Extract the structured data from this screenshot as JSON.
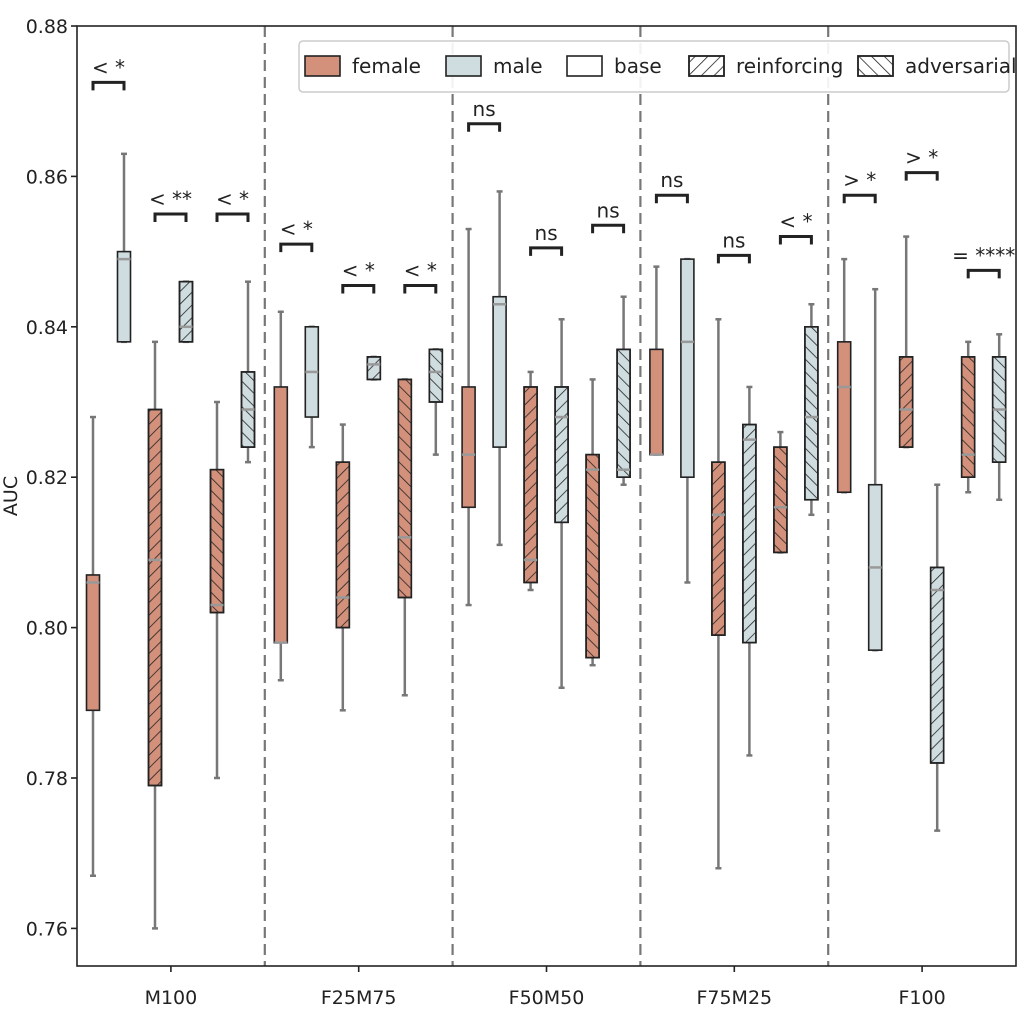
{
  "chart_data": {
    "type": "box",
    "ylabel": "AUC",
    "ylim": [
      0.755,
      0.88
    ],
    "yticks": [
      0.76,
      0.78,
      0.8,
      0.82,
      0.84,
      0.86,
      0.88
    ],
    "ytick_labels": [
      "0.76",
      "0.78",
      "0.80",
      "0.82",
      "0.84",
      "0.86",
      "0.88"
    ],
    "groups": [
      "M100",
      "F25M75",
      "F50M50",
      "F75M25",
      "F100"
    ],
    "legend_position": "top-right",
    "legend": [
      {
        "label": "female",
        "kind": "color",
        "color": "#d3907b"
      },
      {
        "label": "male",
        "kind": "color",
        "color": "#cfdde0"
      },
      {
        "label": "base",
        "kind": "pattern",
        "pattern": "none"
      },
      {
        "label": "reinforcing",
        "kind": "pattern",
        "pattern": "forward"
      },
      {
        "label": "adversarial",
        "kind": "pattern",
        "pattern": "back"
      }
    ],
    "colors": {
      "female": "#d3907b",
      "male": "#cfdde0"
    },
    "boxes": [
      {
        "group": "M100",
        "sex": "female",
        "condition": "base",
        "whislo": 0.767,
        "q1": 0.789,
        "med": 0.806,
        "q3": 0.807,
        "whishi": 0.828
      },
      {
        "group": "M100",
        "sex": "male",
        "condition": "base",
        "whislo": 0.838,
        "q1": 0.838,
        "med": 0.849,
        "q3": 0.85,
        "whishi": 0.863
      },
      {
        "group": "M100",
        "sex": "female",
        "condition": "reinforcing",
        "whislo": 0.76,
        "q1": 0.779,
        "med": 0.809,
        "q3": 0.829,
        "whishi": 0.838
      },
      {
        "group": "M100",
        "sex": "male",
        "condition": "reinforcing",
        "whislo": 0.838,
        "q1": 0.838,
        "med": 0.84,
        "q3": 0.846,
        "whishi": 0.846
      },
      {
        "group": "M100",
        "sex": "female",
        "condition": "adversarial",
        "whislo": 0.78,
        "q1": 0.802,
        "med": 0.803,
        "q3": 0.821,
        "whishi": 0.83
      },
      {
        "group": "M100",
        "sex": "male",
        "condition": "adversarial",
        "whislo": 0.822,
        "q1": 0.824,
        "med": 0.829,
        "q3": 0.834,
        "whishi": 0.846
      },
      {
        "group": "F25M75",
        "sex": "female",
        "condition": "base",
        "whislo": 0.793,
        "q1": 0.798,
        "med": 0.798,
        "q3": 0.832,
        "whishi": 0.842
      },
      {
        "group": "F25M75",
        "sex": "male",
        "condition": "base",
        "whislo": 0.824,
        "q1": 0.828,
        "med": 0.834,
        "q3": 0.84,
        "whishi": 0.84
      },
      {
        "group": "F25M75",
        "sex": "female",
        "condition": "reinforcing",
        "whislo": 0.789,
        "q1": 0.8,
        "med": 0.804,
        "q3": 0.822,
        "whishi": 0.827
      },
      {
        "group": "F25M75",
        "sex": "male",
        "condition": "reinforcing",
        "whislo": 0.833,
        "q1": 0.833,
        "med": 0.835,
        "q3": 0.836,
        "whishi": 0.836
      },
      {
        "group": "F25M75",
        "sex": "female",
        "condition": "adversarial",
        "whislo": 0.791,
        "q1": 0.804,
        "med": 0.812,
        "q3": 0.833,
        "whishi": 0.833
      },
      {
        "group": "F25M75",
        "sex": "male",
        "condition": "adversarial",
        "whislo": 0.823,
        "q1": 0.83,
        "med": 0.834,
        "q3": 0.837,
        "whishi": 0.837
      },
      {
        "group": "F50M50",
        "sex": "female",
        "condition": "base",
        "whislo": 0.803,
        "q1": 0.816,
        "med": 0.823,
        "q3": 0.832,
        "whishi": 0.853
      },
      {
        "group": "F50M50",
        "sex": "male",
        "condition": "base",
        "whislo": 0.811,
        "q1": 0.824,
        "med": 0.843,
        "q3": 0.844,
        "whishi": 0.858
      },
      {
        "group": "F50M50",
        "sex": "female",
        "condition": "reinforcing",
        "whislo": 0.805,
        "q1": 0.806,
        "med": 0.809,
        "q3": 0.832,
        "whishi": 0.834
      },
      {
        "group": "F50M50",
        "sex": "male",
        "condition": "reinforcing",
        "whislo": 0.792,
        "q1": 0.814,
        "med": 0.828,
        "q3": 0.832,
        "whishi": 0.841
      },
      {
        "group": "F50M50",
        "sex": "female",
        "condition": "adversarial",
        "whislo": 0.795,
        "q1": 0.796,
        "med": 0.821,
        "q3": 0.823,
        "whishi": 0.833
      },
      {
        "group": "F50M50",
        "sex": "male",
        "condition": "adversarial",
        "whislo": 0.819,
        "q1": 0.82,
        "med": 0.821,
        "q3": 0.837,
        "whishi": 0.844
      },
      {
        "group": "F75M25",
        "sex": "female",
        "condition": "base",
        "whislo": 0.823,
        "q1": 0.823,
        "med": 0.823,
        "q3": 0.837,
        "whishi": 0.848
      },
      {
        "group": "F75M25",
        "sex": "male",
        "condition": "base",
        "whislo": 0.806,
        "q1": 0.82,
        "med": 0.838,
        "q3": 0.849,
        "whishi": 0.849
      },
      {
        "group": "F75M25",
        "sex": "female",
        "condition": "reinforcing",
        "whislo": 0.768,
        "q1": 0.799,
        "med": 0.815,
        "q3": 0.822,
        "whishi": 0.841
      },
      {
        "group": "F75M25",
        "sex": "male",
        "condition": "reinforcing",
        "whislo": 0.783,
        "q1": 0.798,
        "med": 0.825,
        "q3": 0.827,
        "whishi": 0.832
      },
      {
        "group": "F75M25",
        "sex": "female",
        "condition": "adversarial",
        "whislo": 0.81,
        "q1": 0.81,
        "med": 0.816,
        "q3": 0.824,
        "whishi": 0.826
      },
      {
        "group": "F75M25",
        "sex": "male",
        "condition": "adversarial",
        "whislo": 0.815,
        "q1": 0.817,
        "med": 0.828,
        "q3": 0.84,
        "whishi": 0.843
      },
      {
        "group": "F100",
        "sex": "female",
        "condition": "base",
        "whislo": 0.818,
        "q1": 0.818,
        "med": 0.832,
        "q3": 0.838,
        "whishi": 0.849
      },
      {
        "group": "F100",
        "sex": "male",
        "condition": "base",
        "whislo": 0.797,
        "q1": 0.797,
        "med": 0.808,
        "q3": 0.819,
        "whishi": 0.845
      },
      {
        "group": "F100",
        "sex": "female",
        "condition": "reinforcing",
        "whislo": 0.824,
        "q1": 0.824,
        "med": 0.829,
        "q3": 0.836,
        "whishi": 0.852
      },
      {
        "group": "F100",
        "sex": "male",
        "condition": "reinforcing",
        "whislo": 0.773,
        "q1": 0.782,
        "med": 0.805,
        "q3": 0.808,
        "whishi": 0.819
      },
      {
        "group": "F100",
        "sex": "female",
        "condition": "adversarial",
        "whislo": 0.818,
        "q1": 0.82,
        "med": 0.823,
        "q3": 0.836,
        "whishi": 0.838
      },
      {
        "group": "F100",
        "sex": "male",
        "condition": "adversarial",
        "whislo": 0.817,
        "q1": 0.822,
        "med": 0.829,
        "q3": 0.836,
        "whishi": 0.839
      }
    ],
    "significance": [
      {
        "group": "M100",
        "condition": "base",
        "label": "< *",
        "y": 0.8725
      },
      {
        "group": "M100",
        "condition": "reinforcing",
        "label": "< **",
        "y": 0.855
      },
      {
        "group": "M100",
        "condition": "adversarial",
        "label": "< *",
        "y": 0.855
      },
      {
        "group": "F25M75",
        "condition": "base",
        "label": "< *",
        "y": 0.851
      },
      {
        "group": "F25M75",
        "condition": "reinforcing",
        "label": "< *",
        "y": 0.8455
      },
      {
        "group": "F25M75",
        "condition": "adversarial",
        "label": "< *",
        "y": 0.8455
      },
      {
        "group": "F50M50",
        "condition": "base",
        "label": "ns",
        "y": 0.867
      },
      {
        "group": "F50M50",
        "condition": "reinforcing",
        "label": "ns",
        "y": 0.8505
      },
      {
        "group": "F50M50",
        "condition": "adversarial",
        "label": "ns",
        "y": 0.8535
      },
      {
        "group": "F75M25",
        "condition": "base",
        "label": "ns",
        "y": 0.8575
      },
      {
        "group": "F75M25",
        "condition": "reinforcing",
        "label": "ns",
        "y": 0.8495
      },
      {
        "group": "F75M25",
        "condition": "adversarial",
        "label": "< *",
        "y": 0.852
      },
      {
        "group": "F100",
        "condition": "base",
        "label": "> *",
        "y": 0.8575
      },
      {
        "group": "F100",
        "condition": "reinforcing",
        "label": "> *",
        "y": 0.8605
      },
      {
        "group": "F100",
        "condition": "adversarial",
        "label": "= ****",
        "y": 0.8475
      }
    ]
  }
}
